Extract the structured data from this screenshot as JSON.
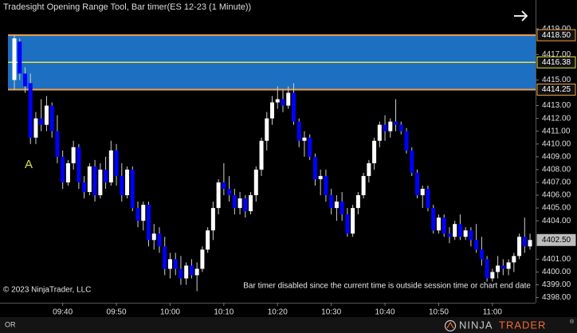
{
  "chart_data": {
    "type": "candlestick",
    "title": "Tradesight Opening Range Tool, Bar timer(ES 12-23 (1 Minute))",
    "copyright": "© 2023 NinjaTrader, LLC",
    "status_message": "Bar timer disabled since the current time is outside session time or chart end date",
    "annotation": "A",
    "tab": "OR",
    "brand": {
      "first": "NINJA",
      "second": "TRADER",
      "mark": "®"
    },
    "up_color": "#ffffff",
    "down_color": "#0000ff",
    "range_color": "#1f78d1",
    "range_edge_color": "#f0a04a",
    "range_mid_color": "#e6e24a",
    "opening_range": {
      "high": {
        "value": 4418.5,
        "label": "4418.50"
      },
      "mid": {
        "value": 4416.38,
        "label": "4416.38"
      },
      "low": {
        "value": 4414.25,
        "label": "4414.25"
      }
    },
    "last_price": {
      "value": 4402.5,
      "label": "4402.50"
    },
    "ylim": [
      4397.6,
      4421.25
    ],
    "yticks": [
      {
        "value": 4398,
        "label": "4398.00"
      },
      {
        "value": 4399,
        "label": "4399.00"
      },
      {
        "value": 4400,
        "label": "4400.00"
      },
      {
        "value": 4401,
        "label": "4401.00"
      },
      {
        "value": 4404,
        "label": "4404.00"
      },
      {
        "value": 4405,
        "label": "4405.00"
      },
      {
        "value": 4406,
        "label": "4406.00"
      },
      {
        "value": 4407,
        "label": "4407.00"
      },
      {
        "value": 4408,
        "label": "4408.00"
      },
      {
        "value": 4409,
        "label": "4409.00"
      },
      {
        "value": 4410,
        "label": "4410.00"
      },
      {
        "value": 4411,
        "label": "4411.00"
      },
      {
        "value": 4412,
        "label": "4412.00"
      },
      {
        "value": 4413,
        "label": "4413.00"
      },
      {
        "value": 4415,
        "label": "4415.00"
      },
      {
        "value": 4417,
        "label": "4417.00"
      },
      {
        "value": 4419,
        "label": "4419.00"
      }
    ],
    "categories": [
      null,
      null,
      null,
      null,
      null,
      null,
      null,
      null,
      null,
      "09:40",
      null,
      null,
      null,
      null,
      null,
      null,
      null,
      null,
      null,
      "09:50",
      null,
      null,
      null,
      null,
      null,
      null,
      null,
      null,
      null,
      "10:00",
      null,
      null,
      null,
      null,
      null,
      null,
      null,
      null,
      null,
      "10:10",
      null,
      null,
      null,
      null,
      null,
      null,
      null,
      null,
      null,
      "10:20",
      null,
      null,
      null,
      null,
      null,
      null,
      null,
      null,
      null,
      "10:30",
      null,
      null,
      null,
      null,
      null,
      null,
      null,
      null,
      null,
      "10:40",
      null,
      null,
      null,
      null,
      null,
      null,
      null,
      null,
      null,
      "10:50",
      null,
      null,
      null,
      null,
      null,
      null,
      null,
      null,
      null,
      "11:00",
      null,
      null,
      null,
      null,
      null,
      null,
      null
    ],
    "open": [
      4415,
      4418,
      4415.5,
      4414.75,
      4410.5,
      4412,
      4411.5,
      4413,
      4411,
      4409,
      4407,
      4408.5,
      4409.75,
      4407,
      4406.25,
      4408.25,
      4406,
      4408,
      4407,
      4409.5,
      4407.5,
      4406,
      4408,
      4405,
      4404,
      4405.25,
      4402.5,
      4403,
      4402,
      4400.25,
      4401,
      4400.25,
      4399.5,
      4400.5,
      4399.75,
      4400.25,
      4401.75,
      4403.25,
      4405,
      4407,
      4406.5,
      4406,
      4405,
      4405.75,
      4404.75,
      4406,
      4408,
      4410.25,
      4412,
      4413.25,
      4413.5,
      4413,
      4414,
      4411.75,
      4410.25,
      4410.5,
      4409,
      4407.25,
      4407.5,
      4406,
      4405,
      4405.5,
      4404.5,
      4403,
      4405,
      4406,
      4407.5,
      4408.5,
      4410.25,
      4411.5,
      4411,
      4411.75,
      4411.5,
      4411,
      4409.5,
      4407.75,
      4406,
      4406.5,
      4405,
      4403.25,
      4404.25,
      4403,
      4402.75,
      4403.75,
      4402.75,
      4403.25,
      4402.5,
      4401.75,
      4401,
      4399.5,
      4400,
      4400.5,
      4400.25,
      4400.75,
      4401.25,
      4402.75,
      4402
    ],
    "high": [
      4418.5,
      4418.25,
      4416,
      4415.5,
      4412.5,
      4413.5,
      4413.75,
      4413.25,
      4412.25,
      4409.5,
      4408.75,
      4410.25,
      4410,
      4407.5,
      4408.5,
      4408.75,
      4408.5,
      4409,
      4410.25,
      4410,
      4408.5,
      4408.25,
      4408.25,
      4405.5,
      4405.5,
      4405.5,
      4403.75,
      4403.5,
      4402.75,
      4401.5,
      4401.5,
      4401.25,
      4400.75,
      4401,
      4400.75,
      4402,
      4403.5,
      4405.5,
      4407.25,
      4408.5,
      4407.5,
      4406.5,
      4406.25,
      4406,
      4406.25,
      4408.25,
      4410.5,
      4412.5,
      4413.75,
      4414.5,
      4414.25,
      4414.5,
      4414.75,
      4412,
      4411,
      4410.75,
      4409.25,
      4408,
      4408,
      4406.5,
      4406,
      4406.25,
      4405,
      4405.25,
      4406.25,
      4407.75,
      4408.75,
      4410.5,
      4411.75,
      4412.25,
      4412,
      4413.5,
      4411.75,
      4411.25,
      4409.75,
      4408,
      4406.75,
      4406.75,
      4405.25,
      4404.5,
      4404.5,
      4403.5,
      4404,
      4404.5,
      4403.5,
      4403.5,
      4403.75,
      4402.75,
      4401.25,
      4400.25,
      4401.25,
      4401,
      4401,
      4401.5,
      4403,
      4404.25,
      4403
    ],
    "low": [
      4414.25,
      4415,
      4414,
      4410,
      4410,
      4411,
      4411,
      4410.5,
      4408.5,
      4406.5,
      4406.75,
      4408,
      4406.5,
      4405.75,
      4406,
      4405.5,
      4405.75,
      4406.5,
      4406.75,
      4406.75,
      4405.5,
      4405.75,
      4404.75,
      4403.5,
      4403.25,
      4402,
      4401.75,
      4401.5,
      4399.75,
      4399.5,
      4399.75,
      4399,
      4399,
      4399.5,
      4398.5,
      4400,
      4401.5,
      4402.5,
      4404.5,
      4406,
      4405.5,
      4404.5,
      4404.5,
      4404.25,
      4404.5,
      4405.5,
      4407.5,
      4409.5,
      4411.5,
      4412.75,
      4412.5,
      4412.75,
      4411.5,
      4409.75,
      4409,
      4408.75,
      4406.75,
      4406,
      4405.5,
      4404.5,
      4404,
      4404,
      4402.75,
      4402.75,
      4404.5,
      4405.75,
      4407,
      4408,
      4409.75,
      4410.25,
      4410.5,
      4411,
      4410.75,
      4409.25,
      4407.5,
      4405.75,
      4405,
      4404.75,
      4403,
      4403,
      4402.75,
      4402.25,
      4402.5,
      4402.5,
      4402.5,
      4402,
      4401.5,
      4400.5,
      4399.25,
      4399.25,
      4399.5,
      4399.75,
      4399.75,
      4400,
      4401,
      4401.5,
      4401.75
    ],
    "close": [
      4418.25,
      4415.5,
      4414.5,
      4410.5,
      4412,
      4411.5,
      4413,
      4411,
      4409,
      4407,
      4408.5,
      4409.75,
      4407,
      4406.25,
      4408.25,
      4406,
      4408,
      4407,
      4409.5,
      4407.5,
      4406,
      4408,
      4405,
      4404,
      4405.25,
      4402.5,
      4403,
      4402,
      4400.25,
      4401,
      4400.25,
      4399.5,
      4400.5,
      4399.75,
      4400.25,
      4401.75,
      4403.25,
      4405,
      4407,
      4406.5,
      4406,
      4405,
      4405.75,
      4404.75,
      4406,
      4408,
      4410.25,
      4412,
      4413.25,
      4413.5,
      4413,
      4414,
      4411.75,
      4410.25,
      4410.5,
      4409,
      4407.25,
      4407.5,
      4406,
      4405,
      4405.5,
      4404.5,
      4403,
      4405,
      4406,
      4407.5,
      4408.5,
      4410.25,
      4411.5,
      4411,
      4411.75,
      4411.5,
      4411,
      4409.5,
      4407.75,
      4406,
      4406.5,
      4405,
      4403.25,
      4404.25,
      4403,
      4402.75,
      4403.75,
      4402.75,
      4403.25,
      4402.5,
      4401.75,
      4401,
      4399.5,
      4400,
      4400.5,
      4400.25,
      4400.75,
      4401.25,
      4402.75,
      4402,
      4402.5
    ]
  }
}
